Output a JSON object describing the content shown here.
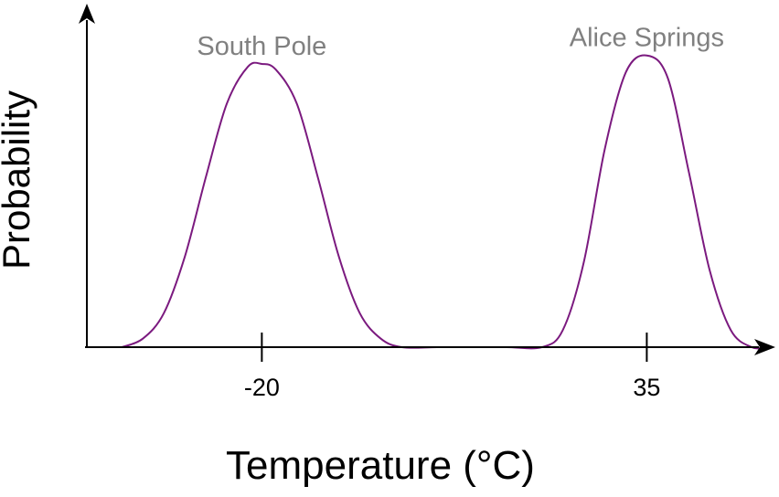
{
  "chart_data": {
    "type": "line",
    "title": "",
    "xlabel": "Temperature (°C)",
    "ylabel": "Probability",
    "xlim": [
      -45,
      65
    ],
    "ylim": [
      0,
      1.05
    ],
    "grid": false,
    "x_ticks": [
      {
        "value": -20,
        "label": "-20"
      },
      {
        "value": 35,
        "label": "35"
      }
    ],
    "annotations": [
      {
        "text": "South Pole",
        "x": -20,
        "y": 1.1
      },
      {
        "text": "Alice Springs",
        "x": 35,
        "y": 1.13
      }
    ],
    "series": [
      {
        "color": "#7b1a7f",
        "x": [
          -40,
          -37,
          -34,
          -31,
          -28,
          -25,
          -22,
          -20,
          -18,
          -15,
          -12,
          -9,
          -6,
          -3,
          0,
          5,
          10,
          15,
          20,
          23,
          26,
          29,
          32,
          35,
          38,
          41,
          44,
          47,
          50,
          52
        ],
        "y": [
          0.0,
          0.03,
          0.12,
          0.32,
          0.6,
          0.86,
          0.99,
          1.0,
          0.98,
          0.86,
          0.6,
          0.32,
          0.12,
          0.03,
          0.0,
          0.0,
          0.0,
          0.0,
          0.0,
          0.06,
          0.3,
          0.7,
          0.97,
          1.03,
          0.95,
          0.62,
          0.27,
          0.06,
          0.0,
          0.0
        ]
      }
    ]
  }
}
